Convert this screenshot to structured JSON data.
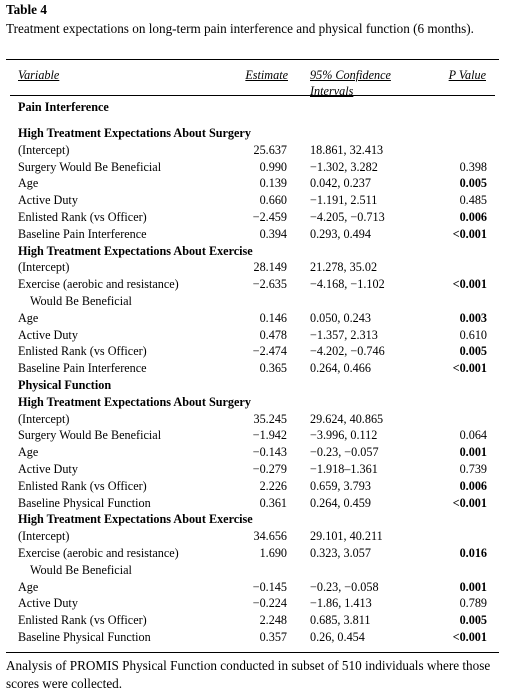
{
  "table": {
    "label": "Table 4",
    "caption": "Treatment expectations on long-term pain interference and physical function (6 months).",
    "headers": {
      "variable": "Variable",
      "estimate": "Estimate",
      "ci_line1": "95% Confidence",
      "ci_line2": "Intervals",
      "p_value": "P Value"
    },
    "footnote": "Analysis of PROMIS Physical Function conducted in subset of 510 individuals where those scores were collected."
  },
  "outcomes": [
    {
      "title": "Pain Interference",
      "groups": [
        {
          "title": "High Treatment Expectations About Surgery",
          "rows": [
            {
              "variable": "(Intercept)",
              "estimate": "25.637",
              "ci": "18.861, 32.413",
              "p": "",
              "p_bold": false
            },
            {
              "variable": "Surgery Would Be Beneficial",
              "estimate": "0.990",
              "ci": "−1.302, 3.282",
              "p": "0.398",
              "p_bold": false
            },
            {
              "variable": "Age",
              "estimate": "0.139",
              "ci": "0.042, 0.237",
              "p": "0.005",
              "p_bold": true
            },
            {
              "variable": "Active Duty",
              "estimate": "0.660",
              "ci": "−1.191, 2.511",
              "p": "0.485",
              "p_bold": false
            },
            {
              "variable": "Enlisted Rank (vs Officer)",
              "estimate": "−2.459",
              "ci": "−4.205, −0.713",
              "p": "0.006",
              "p_bold": true
            },
            {
              "variable": "Baseline Pain Interference",
              "estimate": "0.394",
              "ci": "0.293, 0.494",
              "p": "<0.001",
              "p_bold": true
            }
          ]
        },
        {
          "title": "High Treatment Expectations About Exercise",
          "rows": [
            {
              "variable": "(Intercept)",
              "estimate": "28.149",
              "ci": "21.278, 35.02",
              "p": "",
              "p_bold": false
            },
            {
              "variable": "Exercise (aerobic and resistance)",
              "variable_cont": "Would Be Beneficial",
              "estimate": "−2.635",
              "ci": "−4.168, −1.102",
              "p": "<0.001",
              "p_bold": true
            },
            {
              "variable": "Age",
              "estimate": "0.146",
              "ci": "0.050, 0.243",
              "p": "0.003",
              "p_bold": true
            },
            {
              "variable": "Active Duty",
              "estimate": "0.478",
              "ci": "−1.357, 2.313",
              "p": "0.610",
              "p_bold": false
            },
            {
              "variable": "Enlisted Rank (vs Officer)",
              "estimate": "−2.474",
              "ci": "−4.202, −0.746",
              "p": "0.005",
              "p_bold": true
            },
            {
              "variable": "Baseline Pain Interference",
              "estimate": "0.365",
              "ci": "0.264, 0.466",
              "p": "<0.001",
              "p_bold": true
            }
          ]
        }
      ]
    },
    {
      "title": "Physical Function",
      "groups": [
        {
          "title": "High Treatment Expectations About Surgery",
          "rows": [
            {
              "variable": "(Intercept)",
              "estimate": "35.245",
              "ci": "29.624, 40.865",
              "p": "",
              "p_bold": false
            },
            {
              "variable": "Surgery Would Be Beneficial",
              "estimate": "−1.942",
              "ci": "−3.996, 0.112",
              "p": "0.064",
              "p_bold": false
            },
            {
              "variable": "Age",
              "estimate": "−0.143",
              "ci": "−0.23, −0.057",
              "p": "0.001",
              "p_bold": true
            },
            {
              "variable": "Active Duty",
              "estimate": "−0.279",
              "ci": "−1.918–1.361",
              "p": "0.739",
              "p_bold": false
            },
            {
              "variable": "Enlisted Rank (vs Officer)",
              "estimate": "2.226",
              "ci": "0.659, 3.793",
              "p": "0.006",
              "p_bold": true
            },
            {
              "variable": "Baseline Physical Function",
              "estimate": "0.361",
              "ci": "0.264, 0.459",
              "p": "<0.001",
              "p_bold": true
            }
          ]
        },
        {
          "title": "High Treatment Expectations About Exercise",
          "rows": [
            {
              "variable": "(Intercept)",
              "estimate": "34.656",
              "ci": "29.101, 40.211",
              "p": "",
              "p_bold": false
            },
            {
              "variable": "Exercise (aerobic and resistance)",
              "variable_cont": "Would Be Beneficial",
              "estimate": "1.690",
              "ci": "0.323, 3.057",
              "p": "0.016",
              "p_bold": true
            },
            {
              "variable": "Age",
              "estimate": "−0.145",
              "ci": "−0.23, −0.058",
              "p": "0.001",
              "p_bold": true
            },
            {
              "variable": "Active Duty",
              "estimate": "−0.224",
              "ci": "−1.86, 1.413",
              "p": "0.789",
              "p_bold": false
            },
            {
              "variable": "Enlisted Rank (vs Officer)",
              "estimate": "2.248",
              "ci": "0.685, 3.811",
              "p": "0.005",
              "p_bold": true
            },
            {
              "variable": "Baseline Physical Function",
              "estimate": "0.357",
              "ci": "0.26, 0.454",
              "p": "<0.001",
              "p_bold": true
            }
          ]
        }
      ]
    }
  ]
}
